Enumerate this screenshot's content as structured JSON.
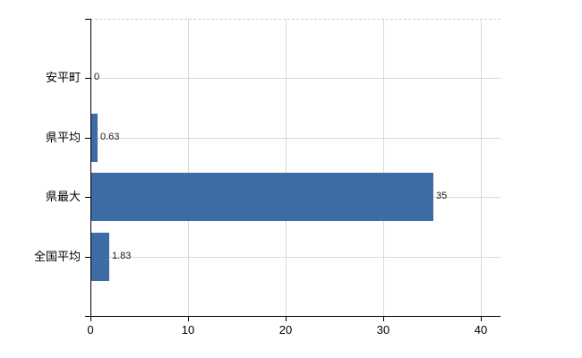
{
  "chart_data": {
    "type": "bar",
    "orientation": "horizontal",
    "title": "",
    "xlabel": "",
    "ylabel": "",
    "categories": [
      "安平町",
      "県平均",
      "県最大",
      "全国平均"
    ],
    "values": [
      0,
      0.63,
      35,
      1.83
    ],
    "value_labels": [
      "0",
      "0.63",
      "35",
      "1.83"
    ],
    "xlim": [
      0,
      42
    ],
    "xticks": [
      0,
      10,
      20,
      30,
      40
    ],
    "xtick_labels": [
      "0",
      "10",
      "20",
      "30",
      "40"
    ],
    "grid": true,
    "legend": false,
    "colors": {
      "bar": "#3e6ca7",
      "axis": "#000000",
      "gridline": "#d5dbd5",
      "top_border": "#c9d0c9",
      "background": "#ffffff",
      "text": "#000000"
    }
  }
}
